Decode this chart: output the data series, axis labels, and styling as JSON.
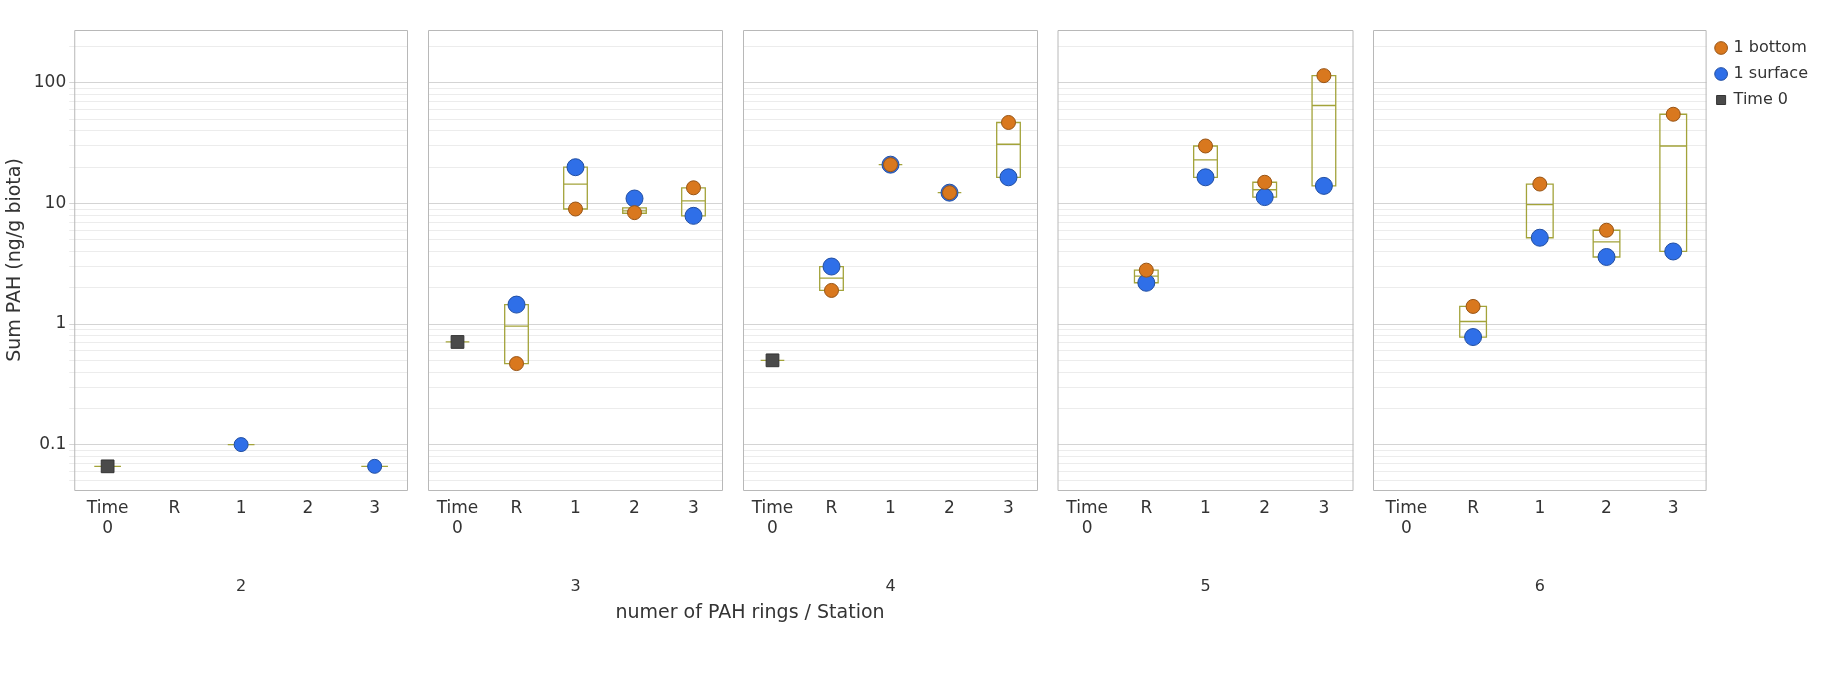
{
  "chart_data": [
    {
      "type": "box",
      "xlabel": "2",
      "ylabel": "Sum PAH (ng/g biota)",
      "categories": [
        "Time 0",
        "R",
        "1",
        "2",
        "3"
      ],
      "log": true,
      "grid": "y",
      "legend": false,
      "ylim": [
        0.042,
        275
      ],
      "yticks": [
        {
          "value": 0.05,
          "label": null
        },
        {
          "value": 0.06,
          "label": null
        },
        {
          "value": 0.07,
          "label": null
        },
        {
          "value": 0.08,
          "label": null
        },
        {
          "value": 0.09,
          "label": null
        },
        0.1,
        {
          "value": 0.2,
          "label": null
        },
        {
          "value": 0.3,
          "label": null
        },
        {
          "value": 0.4,
          "label": null
        },
        {
          "value": 0.5,
          "label": null
        },
        {
          "value": 0.6,
          "label": null
        },
        {
          "value": 0.7,
          "label": null
        },
        {
          "value": 0.8,
          "label": null
        },
        {
          "value": 0.9,
          "label": null
        },
        1,
        {
          "value": 2,
          "label": null
        },
        {
          "value": 3,
          "label": null
        },
        {
          "value": 4,
          "label": null
        },
        {
          "value": 5,
          "label": null
        },
        {
          "value": 6,
          "label": null
        },
        {
          "value": 7,
          "label": null
        },
        {
          "value": 8,
          "label": null
        },
        {
          "value": 9,
          "label": null
        },
        10,
        {
          "value": 20,
          "label": null
        },
        {
          "value": 30,
          "label": null
        },
        {
          "value": 40,
          "label": null
        },
        {
          "value": 50,
          "label": null
        },
        {
          "value": 60,
          "label": null
        },
        {
          "value": 70,
          "label": null
        },
        {
          "value": 80,
          "label": null
        },
        {
          "value": 90,
          "label": null
        },
        100,
        {
          "value": 200,
          "label": null
        }
      ],
      "series": [
        {
          "type": "box",
          "color": "#a3a33a",
          "boxes": [
            {
              "low": 0.066,
              "q1": 0.066,
              "median": 0.066,
              "q3": 0.066,
              "high": 0.066
            },
            null,
            {
              "low": 0.1,
              "q1": 0.1,
              "median": 0.1,
              "q3": 0.1,
              "high": 0.1
            },
            null,
            {
              "low": 0.066,
              "q1": 0.066,
              "median": 0.066,
              "q3": 0.066,
              "high": 0.066
            }
          ]
        },
        {
          "type": "scatter",
          "marker": "square",
          "color": "#4a4a4a",
          "x": [
            "Time 0"
          ],
          "values": [
            0.066
          ]
        },
        {
          "type": "scatter",
          "marker": "circle",
          "color": "#2f6fe8",
          "x": [
            "1",
            "3"
          ],
          "values": [
            0.1,
            0.066
          ]
        }
      ]
    },
    {
      "type": "box",
      "xlabel": "3",
      "categories": [
        "Time 0",
        "R",
        "1",
        "2",
        "3"
      ],
      "log": true,
      "grid": "y",
      "legend": false,
      "tick_labels": "x",
      "ylim": [
        0.042,
        275
      ],
      "yticks": [
        {
          "value": 0.05,
          "label": null
        },
        {
          "value": 0.06,
          "label": null
        },
        {
          "value": 0.07,
          "label": null
        },
        {
          "value": 0.08,
          "label": null
        },
        {
          "value": 0.09,
          "label": null
        },
        0.1,
        {
          "value": 0.2,
          "label": null
        },
        {
          "value": 0.3,
          "label": null
        },
        {
          "value": 0.4,
          "label": null
        },
        {
          "value": 0.5,
          "label": null
        },
        {
          "value": 0.6,
          "label": null
        },
        {
          "value": 0.7,
          "label": null
        },
        {
          "value": 0.8,
          "label": null
        },
        {
          "value": 0.9,
          "label": null
        },
        1,
        {
          "value": 2,
          "label": null
        },
        {
          "value": 3,
          "label": null
        },
        {
          "value": 4,
          "label": null
        },
        {
          "value": 5,
          "label": null
        },
        {
          "value": 6,
          "label": null
        },
        {
          "value": 7,
          "label": null
        },
        {
          "value": 8,
          "label": null
        },
        {
          "value": 9,
          "label": null
        },
        10,
        {
          "value": 20,
          "label": null
        },
        {
          "value": 30,
          "label": null
        },
        {
          "value": 40,
          "label": null
        },
        {
          "value": 50,
          "label": null
        },
        {
          "value": 60,
          "label": null
        },
        {
          "value": 70,
          "label": null
        },
        {
          "value": 80,
          "label": null
        },
        {
          "value": 90,
          "label": null
        },
        100,
        {
          "value": 200,
          "label": null
        }
      ],
      "series": [
        {
          "type": "box",
          "color": "#a3a33a",
          "boxes": [
            {
              "low": 0.71,
              "q1": 0.71,
              "median": 0.71,
              "q3": 0.71,
              "high": 0.71
            },
            {
              "low": 0.47,
              "q1": 0.47,
              "median": 0.96,
              "q3": 1.45,
              "high": 1.45
            },
            {
              "low": 9,
              "q1": 9,
              "median": 14.5,
              "q3": 20,
              "high": 20
            },
            {
              "low": 8.3,
              "q1": 8.3,
              "median": 8.7,
              "q3": 9.2,
              "high": 9.2
            },
            {
              "low": 7.9,
              "q1": 7.9,
              "median": 10.5,
              "q3": 13.5,
              "high": 13.5
            }
          ]
        },
        {
          "type": "scatter",
          "marker": "square",
          "color": "#4a4a4a",
          "x": [
            "Time 0"
          ],
          "values": [
            0.71
          ]
        },
        {
          "type": "scatter",
          "marker": "circle",
          "color": "#2f6fe8",
          "x": [
            "R",
            "1",
            "2",
            "3"
          ],
          "values": [
            1.45,
            20,
            11,
            7.9
          ]
        },
        {
          "type": "scatter",
          "marker": "circle",
          "color": "#d9781e",
          "x": [
            "R",
            "1",
            "2",
            "3"
          ],
          "values": [
            0.47,
            9,
            8.4,
            13.5
          ]
        }
      ]
    },
    {
      "type": "box",
      "xlabel": "4",
      "categories": [
        "Time 0",
        "R",
        "1",
        "2",
        "3"
      ],
      "log": true,
      "grid": "y",
      "legend": false,
      "tick_labels": "x",
      "ylim": [
        0.042,
        275
      ],
      "yticks": [
        {
          "value": 0.05,
          "label": null
        },
        {
          "value": 0.06,
          "label": null
        },
        {
          "value": 0.07,
          "label": null
        },
        {
          "value": 0.08,
          "label": null
        },
        {
          "value": 0.09,
          "label": null
        },
        0.1,
        {
          "value": 0.2,
          "label": null
        },
        {
          "value": 0.3,
          "label": null
        },
        {
          "value": 0.4,
          "label": null
        },
        {
          "value": 0.5,
          "label": null
        },
        {
          "value": 0.6,
          "label": null
        },
        {
          "value": 0.7,
          "label": null
        },
        {
          "value": 0.8,
          "label": null
        },
        {
          "value": 0.9,
          "label": null
        },
        1,
        {
          "value": 2,
          "label": null
        },
        {
          "value": 3,
          "label": null
        },
        {
          "value": 4,
          "label": null
        },
        {
          "value": 5,
          "label": null
        },
        {
          "value": 6,
          "label": null
        },
        {
          "value": 7,
          "label": null
        },
        {
          "value": 8,
          "label": null
        },
        {
          "value": 9,
          "label": null
        },
        10,
        {
          "value": 20,
          "label": null
        },
        {
          "value": 30,
          "label": null
        },
        {
          "value": 40,
          "label": null
        },
        {
          "value": 50,
          "label": null
        },
        {
          "value": 60,
          "label": null
        },
        {
          "value": 70,
          "label": null
        },
        {
          "value": 80,
          "label": null
        },
        {
          "value": 90,
          "label": null
        },
        100,
        {
          "value": 200,
          "label": null
        }
      ],
      "annotations": [
        "numer of PAH rings / Station"
      ],
      "series": [
        {
          "type": "box",
          "color": "#a3a33a",
          "boxes": [
            {
              "low": 0.5,
              "q1": 0.5,
              "median": 0.5,
              "q3": 0.5,
              "high": 0.5
            },
            {
              "low": 1.9,
              "q1": 1.9,
              "median": 2.4,
              "q3": 3,
              "high": 3
            },
            {
              "low": 21,
              "q1": 21,
              "median": 21,
              "q3": 21,
              "high": 21
            },
            {
              "low": 12.3,
              "q1": 12.3,
              "median": 12.3,
              "q3": 12.3,
              "high": 12.3
            },
            {
              "low": 16.5,
              "q1": 16.5,
              "median": 31,
              "q3": 47,
              "high": 47
            }
          ]
        },
        {
          "type": "scatter",
          "marker": "square",
          "color": "#4a4a4a",
          "x": [
            "Time 0"
          ],
          "values": [
            0.5
          ]
        },
        {
          "type": "scatter",
          "marker": "circle",
          "color": "#2f6fe8",
          "x": [
            "R",
            "1",
            "2",
            "3"
          ],
          "values": [
            3,
            21,
            12.3,
            16.5
          ]
        },
        {
          "type": "scatter",
          "marker": "circle",
          "color": "#d9781e",
          "x": [
            "R",
            "1",
            "2",
            "3"
          ],
          "values": [
            1.9,
            21,
            12.3,
            47
          ]
        }
      ]
    },
    {
      "type": "box",
      "xlabel": "5",
      "categories": [
        "Time 0",
        "R",
        "1",
        "2",
        "3"
      ],
      "log": true,
      "grid": "y",
      "legend": false,
      "tick_labels": "x",
      "ylim": [
        0.042,
        275
      ],
      "yticks": [
        {
          "value": 0.05,
          "label": null
        },
        {
          "value": 0.06,
          "label": null
        },
        {
          "value": 0.07,
          "label": null
        },
        {
          "value": 0.08,
          "label": null
        },
        {
          "value": 0.09,
          "label": null
        },
        0.1,
        {
          "value": 0.2,
          "label": null
        },
        {
          "value": 0.3,
          "label": null
        },
        {
          "value": 0.4,
          "label": null
        },
        {
          "value": 0.5,
          "label": null
        },
        {
          "value": 0.6,
          "label": null
        },
        {
          "value": 0.7,
          "label": null
        },
        {
          "value": 0.8,
          "label": null
        },
        {
          "value": 0.9,
          "label": null
        },
        1,
        {
          "value": 2,
          "label": null
        },
        {
          "value": 3,
          "label": null
        },
        {
          "value": 4,
          "label": null
        },
        {
          "value": 5,
          "label": null
        },
        {
          "value": 6,
          "label": null
        },
        {
          "value": 7,
          "label": null
        },
        {
          "value": 8,
          "label": null
        },
        {
          "value": 9,
          "label": null
        },
        10,
        {
          "value": 20,
          "label": null
        },
        {
          "value": 30,
          "label": null
        },
        {
          "value": 40,
          "label": null
        },
        {
          "value": 50,
          "label": null
        },
        {
          "value": 60,
          "label": null
        },
        {
          "value": 70,
          "label": null
        },
        {
          "value": 80,
          "label": null
        },
        {
          "value": 90,
          "label": null
        },
        100,
        {
          "value": 200,
          "label": null
        }
      ],
      "series": [
        {
          "type": "box",
          "color": "#a3a33a",
          "boxes": [
            null,
            {
              "low": 2.2,
              "q1": 2.2,
              "median": 2.5,
              "q3": 2.8,
              "high": 2.8
            },
            {
              "low": 16.5,
              "q1": 16.5,
              "median": 23,
              "q3": 30,
              "high": 30
            },
            {
              "low": 11.3,
              "q1": 11.3,
              "median": 13,
              "q3": 15,
              "high": 15
            },
            {
              "low": 14,
              "q1": 14,
              "median": 65,
              "q3": 115,
              "high": 115
            }
          ]
        },
        {
          "type": "scatter",
          "marker": "circle",
          "color": "#2f6fe8",
          "x": [
            "R",
            "1",
            "2",
            "3"
          ],
          "values": [
            2.2,
            16.5,
            11.3,
            14
          ]
        },
        {
          "type": "scatter",
          "marker": "circle",
          "color": "#d9781e",
          "x": [
            "R",
            "1",
            "2",
            "3"
          ],
          "values": [
            2.8,
            30,
            15,
            115
          ]
        }
      ]
    },
    {
      "type": "box",
      "xlabel": "6",
      "categories": [
        "Time 0",
        "R",
        "1",
        "2",
        "3"
      ],
      "log": true,
      "grid": "y",
      "legend": "top right",
      "tick_labels": "x",
      "ylim": [
        0.042,
        275
      ],
      "yticks": [
        {
          "value": 0.05,
          "label": null
        },
        {
          "value": 0.06,
          "label": null
        },
        {
          "value": 0.07,
          "label": null
        },
        {
          "value": 0.08,
          "label": null
        },
        {
          "value": 0.09,
          "label": null
        },
        0.1,
        {
          "value": 0.2,
          "label": null
        },
        {
          "value": 0.3,
          "label": null
        },
        {
          "value": 0.4,
          "label": null
        },
        {
          "value": 0.5,
          "label": null
        },
        {
          "value": 0.6,
          "label": null
        },
        {
          "value": 0.7,
          "label": null
        },
        {
          "value": 0.8,
          "label": null
        },
        {
          "value": 0.9,
          "label": null
        },
        1,
        {
          "value": 2,
          "label": null
        },
        {
          "value": 3,
          "label": null
        },
        {
          "value": 4,
          "label": null
        },
        {
          "value": 5,
          "label": null
        },
        {
          "value": 6,
          "label": null
        },
        {
          "value": 7,
          "label": null
        },
        {
          "value": 8,
          "label": null
        },
        {
          "value": 9,
          "label": null
        },
        10,
        {
          "value": 20,
          "label": null
        },
        {
          "value": 30,
          "label": null
        },
        {
          "value": 40,
          "label": null
        },
        {
          "value": 50,
          "label": null
        },
        {
          "value": 60,
          "label": null
        },
        {
          "value": 70,
          "label": null
        },
        {
          "value": 80,
          "label": null
        },
        {
          "value": 90,
          "label": null
        },
        100,
        {
          "value": 200,
          "label": null
        }
      ],
      "series": [
        {
          "type": "box",
          "color": "#a3a33a",
          "boxes": [
            null,
            {
              "low": 0.78,
              "q1": 0.78,
              "median": 1.05,
              "q3": 1.4,
              "high": 1.4
            },
            {
              "low": 5.2,
              "q1": 5.2,
              "median": 9.8,
              "q3": 14.5,
              "high": 14.5
            },
            {
              "low": 3.6,
              "q1": 3.6,
              "median": 4.8,
              "q3": 6,
              "high": 6
            },
            {
              "low": 4,
              "q1": 4,
              "median": 30,
              "q3": 55,
              "high": 55
            }
          ]
        },
        {
          "type": "scatter",
          "name": "Time 0",
          "marker": "square",
          "color": "#4a4a4a",
          "x": [
            "Time 0"
          ],
          "values": [
            null
          ]
        },
        {
          "type": "scatter",
          "name": "1 surface",
          "marker": "circle",
          "color": "#2f6fe8",
          "x": [
            "R",
            "1",
            "2",
            "3"
          ],
          "values": [
            0.78,
            5.2,
            3.6,
            4
          ]
        },
        {
          "type": "scatter",
          "name": "1 bottom",
          "marker": "circle",
          "color": "#d9781e",
          "x": [
            "R",
            "1",
            "2",
            "3"
          ],
          "values": [
            1.4,
            14.5,
            6,
            55
          ]
        }
      ]
    }
  ]
}
